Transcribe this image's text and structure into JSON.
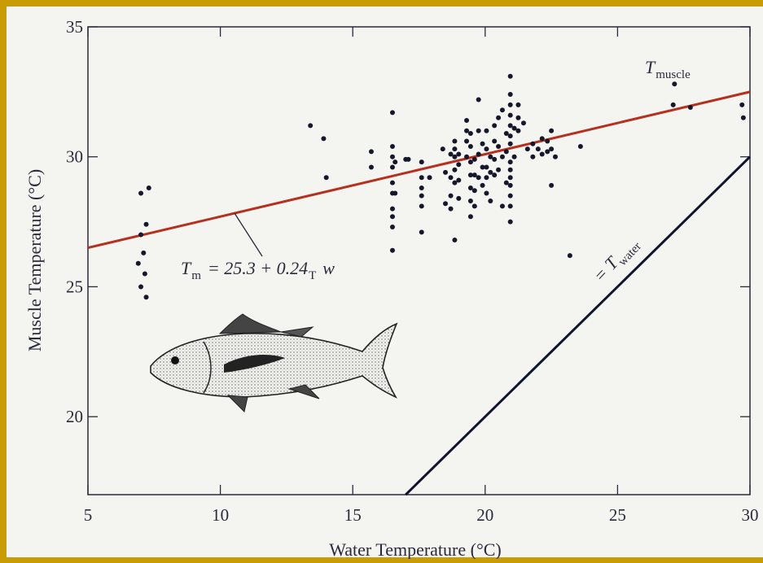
{
  "chart_data": {
    "type": "scatter",
    "x_label": "Water Temperature (°C)",
    "y_label": "Muscle Temperature (°C)",
    "xlim": [
      5,
      30
    ],
    "ylim": [
      17,
      35
    ],
    "xticks": [
      5,
      10,
      15,
      20,
      25,
      30
    ],
    "yticks": [
      20,
      25,
      30,
      35
    ],
    "color": "#15172a",
    "fit": {
      "intercept": 25.3,
      "slope": 0.24,
      "color": "#b5301e"
    },
    "identity_color": "#10142e",
    "annotations": {
      "fit_label": [
        "T",
        "m",
        "= 25.3 + 0.24",
        "T",
        "w"
      ],
      "muscle_label": [
        "T",
        "muscle"
      ],
      "water_label": [
        "= T",
        "water"
      ]
    },
    "x": [
      7.0,
      7.3,
      7.2,
      7.0,
      7.1,
      6.9,
      7.15,
      7.0,
      7.2,
      13.4,
      13.9,
      14.0,
      15.7,
      15.7,
      16.5,
      16.5,
      16.5,
      16.5,
      16.5,
      16.5,
      16.5,
      16.5,
      16.5,
      16.5,
      16.6,
      16.6,
      17.0,
      17.1,
      17.6,
      17.6,
      17.6,
      17.6,
      17.6,
      17.6,
      17.9,
      18.4,
      18.5,
      18.5,
      18.7,
      18.7,
      18.7,
      18.7,
      18.85,
      18.85,
      18.85,
      18.85,
      18.85,
      18.85,
      19.0,
      19.0,
      19.0,
      19.0,
      19.3,
      19.3,
      19.3,
      19.3,
      19.45,
      19.45,
      19.45,
      19.45,
      19.45,
      19.45,
      19.45,
      19.6,
      19.6,
      19.6,
      19.6,
      19.75,
      19.75,
      19.75,
      19.75,
      19.9,
      19.9,
      19.9,
      20.05,
      20.05,
      20.05,
      20.05,
      20.05,
      20.2,
      20.2,
      20.2,
      20.35,
      20.35,
      20.35,
      20.35,
      20.5,
      20.5,
      20.5,
      20.65,
      20.65,
      20.65,
      20.8,
      20.8,
      20.8,
      20.95,
      20.95,
      20.95,
      20.95,
      20.95,
      20.95,
      20.95,
      20.95,
      20.95,
      20.95,
      20.95,
      20.95,
      20.95,
      20.95,
      21.1,
      21.1,
      21.25,
      21.25,
      21.25,
      21.45,
      21.6,
      21.8,
      21.8,
      22.0,
      22.15,
      22.15,
      22.35,
      22.35,
      22.5,
      22.5,
      22.5,
      22.65,
      23.2,
      23.6,
      27.1,
      27.15,
      27.75,
      29.7,
      29.75
    ],
    "values": [
      28.6,
      28.8,
      27.4,
      27.0,
      26.3,
      25.9,
      25.5,
      25.0,
      24.6,
      31.2,
      30.7,
      29.2,
      30.2,
      29.6,
      31.7,
      30.4,
      30.0,
      29.6,
      29.0,
      28.6,
      28.0,
      27.7,
      27.3,
      26.4,
      29.8,
      28.6,
      29.9,
      29.9,
      29.8,
      29.2,
      28.8,
      28.5,
      28.1,
      27.1,
      29.2,
      30.3,
      29.4,
      28.2,
      30.1,
      29.2,
      28.5,
      28.0,
      30.6,
      30.3,
      30.0,
      29.5,
      29.0,
      26.8,
      30.1,
      29.7,
      29.1,
      28.4,
      31.4,
      31.0,
      30.6,
      30.0,
      30.9,
      30.4,
      29.8,
      29.3,
      28.8,
      28.3,
      27.7,
      29.9,
      29.3,
      28.7,
      28.1,
      32.2,
      31.0,
      30.1,
      29.2,
      30.5,
      29.6,
      28.9,
      31.0,
      30.3,
      29.6,
      29.2,
      28.6,
      30.0,
      29.4,
      28.3,
      31.2,
      30.6,
      29.9,
      29.3,
      31.5,
      30.4,
      29.5,
      31.8,
      30.0,
      28.1,
      30.9,
      30.2,
      29.0,
      33.1,
      32.4,
      32.0,
      31.6,
      31.2,
      30.8,
      30.5,
      29.8,
      29.5,
      29.2,
      28.9,
      28.5,
      28.1,
      27.5,
      31.1,
      30.0,
      32.0,
      31.5,
      31.0,
      31.3,
      30.3,
      30.5,
      30.0,
      30.3,
      30.7,
      30.1,
      30.6,
      30.2,
      31.0,
      30.3,
      28.9,
      30.0,
      26.2,
      30.4,
      32.0,
      32.8,
      31.9,
      32.0,
      31.5
    ]
  }
}
